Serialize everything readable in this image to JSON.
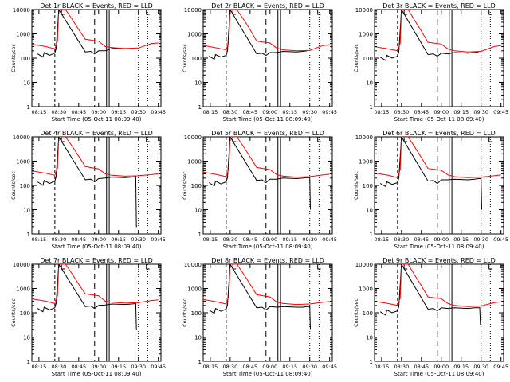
{
  "chart_data": [
    {
      "type": "line",
      "title": "Det 1r BLACK = Events, RED = LLD",
      "xlabel": "Start Time (05-Oct-11 08:09:40)",
      "ylabel": "Counts/sec",
      "x_ticks": [
        "08:15",
        "08:30",
        "08:45",
        "09:00",
        "09:15",
        "09:30",
        "09:45"
      ],
      "y_ticks": [
        "1",
        "10",
        "100",
        "1000",
        "10000"
      ],
      "ylim": [
        1,
        10000
      ],
      "yscale": "log",
      "series": [
        {
          "color": "#000000",
          "x": [
            "08:14",
            "08:18",
            "08:19",
            "08:23",
            "08:27",
            "08:28",
            "08:30",
            "08:50",
            "08:54",
            "08:57",
            "09:00",
            "09:05",
            "09:10",
            "09:20",
            "09:25",
            "09:28"
          ],
          "y": [
            150,
            110,
            170,
            130,
            160,
            250,
            10000,
            180,
            190,
            150,
            200,
            200,
            250,
            240,
            250,
            260
          ]
        },
        {
          "color": "#ff0000",
          "x": [
            "08:09",
            "08:20",
            "08:27",
            "08:29",
            "08:30",
            "08:35",
            "08:40",
            "08:45",
            "08:50",
            "09:00",
            "09:05",
            "09:10",
            "09:20",
            "09:30",
            "09:40",
            "09:45"
          ],
          "y": [
            380,
            300,
            240,
            500,
            10000,
            10000,
            4000,
            1500,
            600,
            500,
            300,
            270,
            250,
            260,
            400,
            420
          ]
        }
      ]
    },
    {
      "type": "line",
      "title": "Det 2r BLACK = Events, RED = LLD",
      "xlabel": "Start Time (05-Oct-11 08:09:40)",
      "ylabel": "Counts/sec",
      "x_ticks": [
        "08:15",
        "08:30",
        "08:45",
        "09:00",
        "09:15",
        "09:30",
        "09:45"
      ],
      "y_ticks": [
        "1",
        "10",
        "100",
        "1000",
        "10000"
      ],
      "ylim": [
        1,
        10000
      ],
      "yscale": "log",
      "series": [
        {
          "color": "#000000",
          "x": [
            "08:14",
            "08:18",
            "08:19",
            "08:23",
            "08:27",
            "08:28",
            "08:30",
            "08:50",
            "08:54",
            "08:57",
            "09:00",
            "09:05",
            "09:10",
            "09:20",
            "09:25",
            "09:28"
          ],
          "y": [
            120,
            90,
            140,
            110,
            130,
            200,
            10000,
            150,
            160,
            130,
            170,
            170,
            190,
            180,
            190,
            200
          ]
        },
        {
          "color": "#ff0000",
          "x": [
            "08:09",
            "08:20",
            "08:27",
            "08:29",
            "08:30",
            "08:35",
            "08:40",
            "08:45",
            "08:50",
            "09:00",
            "09:05",
            "09:10",
            "09:20",
            "09:30",
            "09:40",
            "09:45"
          ],
          "y": [
            340,
            260,
            220,
            450,
            10000,
            10000,
            4000,
            1500,
            500,
            420,
            260,
            220,
            200,
            210,
            330,
            360
          ]
        }
      ]
    },
    {
      "type": "line",
      "title": "Det 3r BLACK = Events, RED = LLD",
      "xlabel": "Start Time (05-Oct-11 08:09:40)",
      "ylabel": "Counts/sec",
      "x_ticks": [
        "08:15",
        "08:30",
        "08:45",
        "09:00",
        "09:15",
        "09:30",
        "09:45"
      ],
      "y_ticks": [
        "1",
        "10",
        "100",
        "1000",
        "10000"
      ],
      "ylim": [
        1,
        10000
      ],
      "yscale": "log",
      "series": [
        {
          "color": "#000000",
          "x": [
            "08:14",
            "08:18",
            "08:19",
            "08:23",
            "08:27",
            "08:28",
            "08:30",
            "08:50",
            "08:54",
            "08:57",
            "09:00",
            "09:05",
            "09:10",
            "09:20",
            "09:25",
            "09:28"
          ],
          "y": [
            110,
            80,
            130,
            100,
            120,
            180,
            10000,
            140,
            150,
            120,
            160,
            150,
            170,
            160,
            170,
            180
          ]
        },
        {
          "color": "#ff0000",
          "x": [
            "08:09",
            "08:20",
            "08:27",
            "08:29",
            "08:30",
            "08:35",
            "08:40",
            "08:45",
            "08:50",
            "09:00",
            "09:05",
            "09:10",
            "09:20",
            "09:30",
            "09:40",
            "09:45"
          ],
          "y": [
            300,
            240,
            200,
            400,
            10000,
            10000,
            3500,
            1300,
            450,
            380,
            240,
            200,
            180,
            190,
            300,
            330
          ]
        }
      ]
    },
    {
      "type": "line",
      "title": "Det 4r BLACK = Events, RED = LLD",
      "xlabel": "Start Time (05-Oct-11 08:09:40)",
      "ylabel": "Counts/sec",
      "x_ticks": [
        "08:15",
        "08:30",
        "08:45",
        "09:00",
        "09:15",
        "09:30",
        "09:45"
      ],
      "y_ticks": [
        "1",
        "10",
        "100",
        "1000",
        "10000"
      ],
      "ylim": [
        1,
        10000
      ],
      "yscale": "log",
      "series": [
        {
          "color": "#000000",
          "x": [
            "08:14",
            "08:18",
            "08:19",
            "08:23",
            "08:27",
            "08:28",
            "08:30",
            "08:50",
            "08:54",
            "08:57",
            "09:00",
            "09:05",
            "09:10",
            "09:20",
            "09:25",
            "09:28",
            "09:28.5",
            "09:29"
          ],
          "y": [
            140,
            100,
            160,
            120,
            150,
            230,
            10000,
            170,
            180,
            140,
            190,
            200,
            220,
            210,
            220,
            230,
            2,
            2
          ]
        },
        {
          "color": "#ff0000",
          "x": [
            "08:09",
            "08:20",
            "08:27",
            "08:29",
            "08:30",
            "08:35",
            "08:40",
            "08:45",
            "08:50",
            "09:00",
            "09:05",
            "09:10",
            "09:20",
            "09:30",
            "09:40",
            "09:45"
          ],
          "y": [
            400,
            320,
            260,
            520,
            10000,
            10000,
            4200,
            1600,
            600,
            480,
            300,
            260,
            240,
            250,
            280,
            300
          ]
        }
      ]
    },
    {
      "type": "line",
      "title": "Det 5r BLACK = Events, RED = LLD",
      "xlabel": "Start Time (05-Oct-11 08:09:40)",
      "ylabel": "Counts/sec",
      "x_ticks": [
        "08:15",
        "08:30",
        "08:45",
        "09:00",
        "09:15",
        "09:30",
        "09:45"
      ],
      "y_ticks": [
        "1",
        "10",
        "100",
        "1000",
        "10000"
      ],
      "ylim": [
        1,
        10000
      ],
      "yscale": "log",
      "series": [
        {
          "color": "#000000",
          "x": [
            "08:14",
            "08:18",
            "08:19",
            "08:23",
            "08:27",
            "08:28",
            "08:30",
            "08:50",
            "08:54",
            "08:57",
            "09:00",
            "09:05",
            "09:10",
            "09:20",
            "09:25",
            "09:28",
            "09:30",
            "09:30.5"
          ],
          "y": [
            130,
            95,
            150,
            115,
            140,
            210,
            10000,
            160,
            170,
            130,
            180,
            180,
            200,
            190,
            200,
            210,
            210,
            10
          ]
        },
        {
          "color": "#ff0000",
          "x": [
            "08:09",
            "08:20",
            "08:27",
            "08:29",
            "08:30",
            "08:35",
            "08:40",
            "08:45",
            "08:50",
            "09:00",
            "09:05",
            "09:10",
            "09:20",
            "09:30",
            "09:40",
            "09:45"
          ],
          "y": [
            360,
            280,
            230,
            480,
            10000,
            10000,
            4000,
            1500,
            550,
            450,
            280,
            240,
            220,
            230,
            270,
            290
          ]
        }
      ]
    },
    {
      "type": "line",
      "title": "Det 6r BLACK = Events, RED = LLD",
      "xlabel": "Start Time (05-Oct-11 08:09:40)",
      "ylabel": "Counts/sec",
      "x_ticks": [
        "08:15",
        "08:30",
        "08:45",
        "09:00",
        "09:15",
        "09:30",
        "09:45"
      ],
      "y_ticks": [
        "1",
        "10",
        "100",
        "1000",
        "10000"
      ],
      "ylim": [
        1,
        10000
      ],
      "yscale": "log",
      "series": [
        {
          "color": "#000000",
          "x": [
            "08:14",
            "08:18",
            "08:19",
            "08:23",
            "08:27",
            "08:28",
            "08:30",
            "08:50",
            "08:54",
            "08:57",
            "09:00",
            "09:05",
            "09:10",
            "09:20",
            "09:25",
            "09:28",
            "09:30",
            "09:30.5"
          ],
          "y": [
            120,
            90,
            140,
            110,
            130,
            200,
            10000,
            150,
            160,
            120,
            170,
            170,
            180,
            170,
            180,
            190,
            190,
            10
          ]
        },
        {
          "color": "#ff0000",
          "x": [
            "08:09",
            "08:20",
            "08:27",
            "08:29",
            "08:30",
            "08:35",
            "08:40",
            "08:45",
            "08:50",
            "09:00",
            "09:05",
            "09:10",
            "09:20",
            "09:30",
            "09:40",
            "09:45"
          ],
          "y": [
            330,
            260,
            210,
            450,
            10000,
            10000,
            3800,
            1400,
            500,
            420,
            270,
            230,
            210,
            220,
            250,
            270
          ]
        }
      ]
    },
    {
      "type": "line",
      "title": "Det 7r BLACK = Events, RED = LLD",
      "xlabel": "Start Time (05-Oct-11 08:09:40)",
      "ylabel": "Counts/sec",
      "x_ticks": [
        "08:15",
        "08:30",
        "08:45",
        "09:00",
        "09:15",
        "09:30",
        "09:45"
      ],
      "y_ticks": [
        "1",
        "10",
        "100",
        "1000",
        "10000"
      ],
      "ylim": [
        1,
        10000
      ],
      "yscale": "log",
      "series": [
        {
          "color": "#000000",
          "x": [
            "08:14",
            "08:18",
            "08:19",
            "08:23",
            "08:27",
            "08:28",
            "08:30",
            "08:50",
            "08:54",
            "08:57",
            "09:00",
            "09:05",
            "09:10",
            "09:20",
            "09:25",
            "09:28",
            "09:28.5",
            "09:29"
          ],
          "y": [
            150,
            110,
            170,
            130,
            160,
            250,
            10000,
            180,
            190,
            150,
            200,
            210,
            230,
            220,
            230,
            240,
            20,
            20
          ]
        },
        {
          "color": "#ff0000",
          "x": [
            "08:09",
            "08:20",
            "08:27",
            "08:29",
            "08:30",
            "08:35",
            "08:40",
            "08:45",
            "08:50",
            "09:00",
            "09:05",
            "09:10",
            "09:20",
            "09:30",
            "09:40",
            "09:45"
          ],
          "y": [
            380,
            300,
            240,
            500,
            10000,
            10000,
            4000,
            1500,
            600,
            500,
            300,
            270,
            250,
            260,
            320,
            340
          ]
        }
      ]
    },
    {
      "type": "line",
      "title": "Det 8r BLACK = Events, RED = LLD",
      "xlabel": "Start Time (05-Oct-11 08:09:40)",
      "ylabel": "Counts/sec",
      "x_ticks": [
        "08:15",
        "08:30",
        "08:45",
        "09:00",
        "09:15",
        "09:30",
        "09:45"
      ],
      "y_ticks": [
        "1",
        "10",
        "100",
        "1000",
        "10000"
      ],
      "ylim": [
        1,
        10000
      ],
      "yscale": "log",
      "series": [
        {
          "color": "#000000",
          "x": [
            "08:14",
            "08:18",
            "08:19",
            "08:23",
            "08:27",
            "08:28",
            "08:30",
            "08:50",
            "08:54",
            "08:57",
            "09:00",
            "09:05",
            "09:10",
            "09:20",
            "09:25",
            "09:28",
            "09:30",
            "09:30.5"
          ],
          "y": [
            130,
            95,
            150,
            115,
            140,
            210,
            10000,
            160,
            170,
            130,
            180,
            170,
            180,
            170,
            170,
            180,
            180,
            20
          ]
        },
        {
          "color": "#ff0000",
          "x": [
            "08:09",
            "08:20",
            "08:27",
            "08:29",
            "08:30",
            "08:35",
            "08:40",
            "08:45",
            "08:50",
            "09:00",
            "09:05",
            "09:10",
            "09:20",
            "09:30",
            "09:40",
            "09:45"
          ],
          "y": [
            360,
            280,
            230,
            480,
            10000,
            10000,
            4000,
            1500,
            550,
            450,
            280,
            240,
            220,
            230,
            270,
            290
          ]
        }
      ]
    },
    {
      "type": "line",
      "title": "Det 9r BLACK = Events, RED = LLD",
      "xlabel": "Start Time (05-Oct-11 08:09:40)",
      "ylabel": "Counts/sec",
      "x_ticks": [
        "08:15",
        "08:30",
        "08:45",
        "09:00",
        "09:15",
        "09:30",
        "09:45"
      ],
      "y_ticks": [
        "1",
        "10",
        "100",
        "1000",
        "10000"
      ],
      "ylim": [
        1,
        10000
      ],
      "yscale": "log",
      "series": [
        {
          "color": "#000000",
          "x": [
            "08:14",
            "08:18",
            "08:19",
            "08:23",
            "08:27",
            "08:28",
            "08:30",
            "08:50",
            "08:54",
            "08:57",
            "09:00",
            "09:05",
            "09:10",
            "09:20",
            "09:25",
            "09:28",
            "09:29",
            "09:29.5"
          ],
          "y": [
            110,
            80,
            130,
            100,
            120,
            180,
            10000,
            140,
            150,
            120,
            160,
            150,
            160,
            150,
            160,
            160,
            160,
            30
          ]
        },
        {
          "color": "#ff0000",
          "x": [
            "08:09",
            "08:20",
            "08:27",
            "08:29",
            "08:30",
            "08:35",
            "08:40",
            "08:45",
            "08:50",
            "09:00",
            "09:05",
            "09:10",
            "09:20",
            "09:30",
            "09:40",
            "09:45"
          ],
          "y": [
            300,
            240,
            200,
            400,
            10000,
            10000,
            3500,
            1300,
            450,
            380,
            240,
            200,
            180,
            190,
            260,
            280
          ]
        }
      ]
    }
  ]
}
